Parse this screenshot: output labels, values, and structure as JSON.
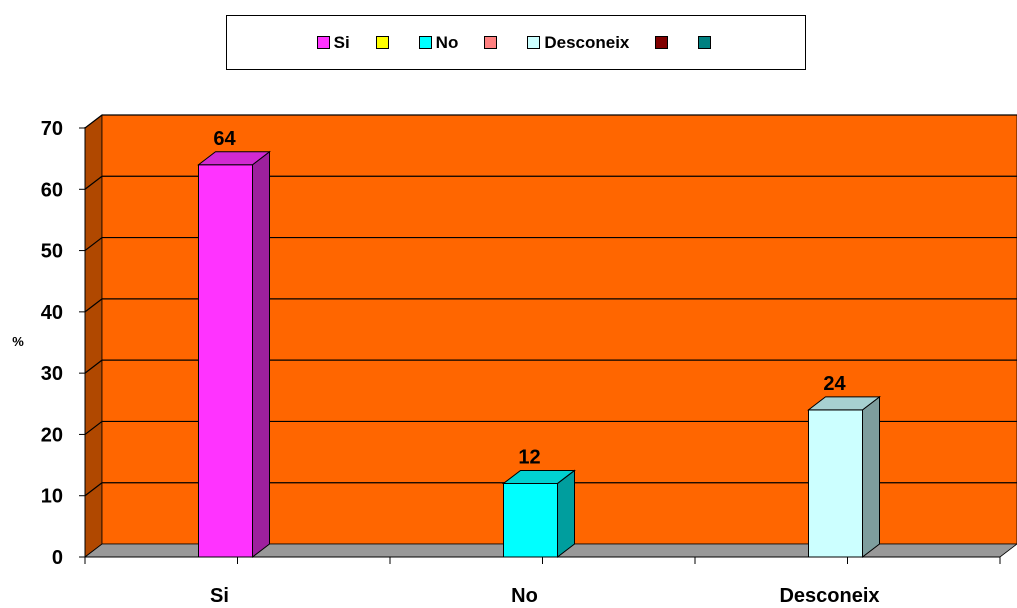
{
  "chart_data": {
    "type": "bar",
    "categories": [
      "Si",
      "No",
      "Desconeix"
    ],
    "values": [
      64,
      12,
      24
    ],
    "data_labels": [
      "64",
      "12",
      "24"
    ],
    "bar_colors": [
      "#ff33ff",
      "#00ffff",
      "#ccffff"
    ],
    "ylabel": "%",
    "xlabel": "",
    "ylim": [
      0,
      70
    ],
    "yticks": [
      0,
      10,
      20,
      30,
      40,
      50,
      60,
      70
    ],
    "grid": true,
    "plot_background": "#ff6600",
    "legend": {
      "placement": "top",
      "entries": [
        {
          "label": "Si",
          "color": "#ff33ff"
        },
        {
          "label": "",
          "color": "#ffff00"
        },
        {
          "label": "No",
          "color": "#00ffff"
        },
        {
          "label": "",
          "color": "#ff8080"
        },
        {
          "label": "Desconeix",
          "color": "#ccffff"
        },
        {
          "label": "",
          "color": "#800000"
        },
        {
          "label": "",
          "color": "#008080"
        }
      ]
    }
  }
}
